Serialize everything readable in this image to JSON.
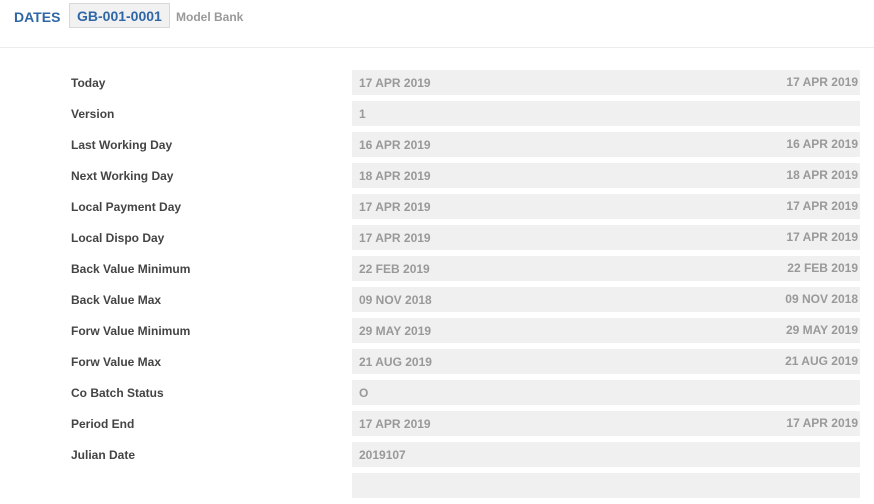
{
  "header": {
    "title": "DATES",
    "company_id": "GB-001-0001",
    "company_name": "Model Bank"
  },
  "rows": [
    {
      "label": "Today",
      "value": "17 APR 2019",
      "value_right": "17 APR 2019"
    },
    {
      "label": "Version",
      "value": "1",
      "value_right": ""
    },
    {
      "label": "Last Working Day",
      "value": "16 APR 2019",
      "value_right": "16 APR 2019"
    },
    {
      "label": "Next Working Day",
      "value": "18 APR 2019",
      "value_right": "18 APR 2019"
    },
    {
      "label": "Local Payment Day",
      "value": "17 APR 2019",
      "value_right": "17 APR 2019"
    },
    {
      "label": "Local Dispo Day",
      "value": "17 APR 2019",
      "value_right": "17 APR 2019"
    },
    {
      "label": "Back Value Minimum",
      "value": "22 FEB 2019",
      "value_right": "22 FEB 2019"
    },
    {
      "label": "Back Value Max",
      "value": "09 NOV 2018",
      "value_right": "09 NOV 2018"
    },
    {
      "label": "Forw Value Minimum",
      "value": "29 MAY 2019",
      "value_right": "29 MAY 2019"
    },
    {
      "label": "Forw Value Max",
      "value": "21 AUG 2019",
      "value_right": "21 AUG 2019"
    },
    {
      "label": "Co Batch Status",
      "value": "O",
      "value_right": ""
    },
    {
      "label": "Period End",
      "value": "17 APR 2019",
      "value_right": "17 APR 2019"
    },
    {
      "label": "Julian Date",
      "value": "2019107",
      "value_right": ""
    },
    {
      "label": "",
      "value": "",
      "value_right": ""
    }
  ]
}
